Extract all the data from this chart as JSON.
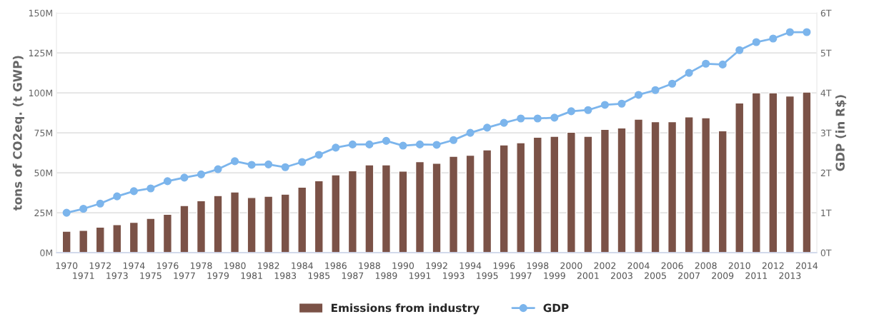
{
  "chart_data": {
    "type": "bar",
    "ylabel": "tons of CO2eq. (t GWP)",
    "y2label": "GDP (in R$)",
    "categories": [
      "1970",
      "1971",
      "1972",
      "1973",
      "1974",
      "1975",
      "1976",
      "1977",
      "1978",
      "1979",
      "1980",
      "1981",
      "1982",
      "1983",
      "1984",
      "1985",
      "1986",
      "1987",
      "1988",
      "1989",
      "1990",
      "1991",
      "1992",
      "1993",
      "1994",
      "1995",
      "1996",
      "1997",
      "1998",
      "1999",
      "2000",
      "2001",
      "2002",
      "2003",
      "2004",
      "2005",
      "2006",
      "2007",
      "2008",
      "2009",
      "2010",
      "2011",
      "2012",
      "2013",
      "2014"
    ],
    "series": [
      {
        "name": "Emissions from industry",
        "color": "#7b5247",
        "values": [
          13.4,
          14,
          16,
          17.5,
          19,
          21.5,
          24,
          29.5,
          32.5,
          35.7,
          38,
          34.5,
          35.3,
          36.6,
          41,
          45,
          48.7,
          51.3,
          55,
          55,
          51,
          57,
          56,
          60.3,
          61,
          64.3,
          67.4,
          68.8,
          72.3,
          72.8,
          75.4,
          72.8,
          77.2,
          78,
          83.5,
          82,
          82,
          85,
          84.4,
          76.3,
          93.7,
          100,
          100,
          98,
          100.5
        ]
      },
      {
        "name": "GDP",
        "type": "line",
        "axis": "y2",
        "color": "#7cb5ec",
        "marker": "circle",
        "values": [
          1.0,
          1.1,
          1.23,
          1.41,
          1.54,
          1.61,
          1.79,
          1.88,
          1.96,
          2.09,
          2.29,
          2.2,
          2.21,
          2.14,
          2.27,
          2.45,
          2.63,
          2.71,
          2.71,
          2.8,
          2.68,
          2.71,
          2.7,
          2.82,
          3.0,
          3.13,
          3.25,
          3.36,
          3.36,
          3.38,
          3.54,
          3.57,
          3.7,
          3.73,
          3.95,
          4.07,
          4.23,
          4.5,
          4.73,
          4.71,
          5.07,
          5.27,
          5.36,
          5.52,
          5.52
        ]
      }
    ],
    "ylim": [
      0,
      150
    ],
    "yticks": [
      {
        "value": 0,
        "label": "0M"
      },
      {
        "value": 25,
        "label": "25M"
      },
      {
        "value": 50,
        "label": "50M"
      },
      {
        "value": 75,
        "label": "75M"
      },
      {
        "value": 100,
        "label": "100M"
      },
      {
        "value": 125,
        "label": "125M"
      },
      {
        "value": 150,
        "label": "150M"
      }
    ],
    "y2lim": [
      0,
      6
    ],
    "y2ticks": [
      {
        "value": 0,
        "label": "0T"
      },
      {
        "value": 1,
        "label": "1T"
      },
      {
        "value": 2,
        "label": "2T"
      },
      {
        "value": 3,
        "label": "3T"
      },
      {
        "value": 4,
        "label": "4T"
      },
      {
        "value": 5,
        "label": "5T"
      },
      {
        "value": 6,
        "label": "6T"
      }
    ],
    "grid": "y",
    "legend": "bottom"
  }
}
